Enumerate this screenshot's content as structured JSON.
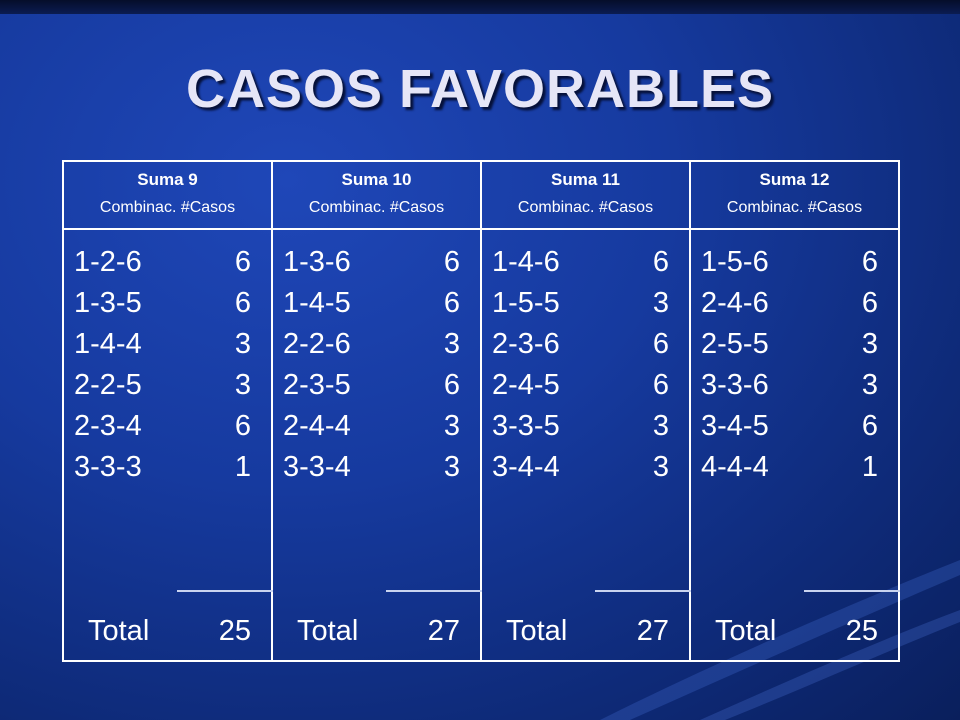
{
  "title": "CASOS FAVORABLES",
  "colors": {
    "background": "#163a9f",
    "title": "#e6e6f7",
    "border": "#ffffff"
  },
  "table": {
    "subheader": "Combinac.  #Casos",
    "columns": [
      {
        "header": "Suma 9",
        "rows": [
          {
            "combo": "1-2-6",
            "cases": "6"
          },
          {
            "combo": "1-3-5",
            "cases": "6"
          },
          {
            "combo": "1-4-4",
            "cases": "3"
          },
          {
            "combo": "2-2-5",
            "cases": "3"
          },
          {
            "combo": "2-3-4",
            "cases": "6"
          },
          {
            "combo": "3-3-3",
            "cases": "1"
          }
        ],
        "total_label": "Total",
        "total": "25"
      },
      {
        "header": "Suma 10",
        "rows": [
          {
            "combo": "1-3-6",
            "cases": "6"
          },
          {
            "combo": "1-4-5",
            "cases": "6"
          },
          {
            "combo": "2-2-6",
            "cases": "3"
          },
          {
            "combo": "2-3-5",
            "cases": "6"
          },
          {
            "combo": "2-4-4",
            "cases": "3"
          },
          {
            "combo": "3-3-4",
            "cases": "3"
          }
        ],
        "total_label": "Total",
        "total": "27"
      },
      {
        "header": "Suma 11",
        "rows": [
          {
            "combo": "1-4-6",
            "cases": "6"
          },
          {
            "combo": "1-5-5",
            "cases": "3"
          },
          {
            "combo": "2-3-6",
            "cases": "6"
          },
          {
            "combo": "2-4-5",
            "cases": "6"
          },
          {
            "combo": "3-3-5",
            "cases": "3"
          },
          {
            "combo": "3-4-4",
            "cases": "3"
          }
        ],
        "total_label": "Total",
        "total": "27"
      },
      {
        "header": "Suma 12",
        "rows": [
          {
            "combo": "1-5-6",
            "cases": "6"
          },
          {
            "combo": "2-4-6",
            "cases": "6"
          },
          {
            "combo": "2-5-5",
            "cases": "3"
          },
          {
            "combo": "3-3-6",
            "cases": "3"
          },
          {
            "combo": "3-4-5",
            "cases": "6"
          },
          {
            "combo": "4-4-4",
            "cases": "1"
          }
        ],
        "total_label": "Total",
        "total": "25"
      }
    ]
  }
}
